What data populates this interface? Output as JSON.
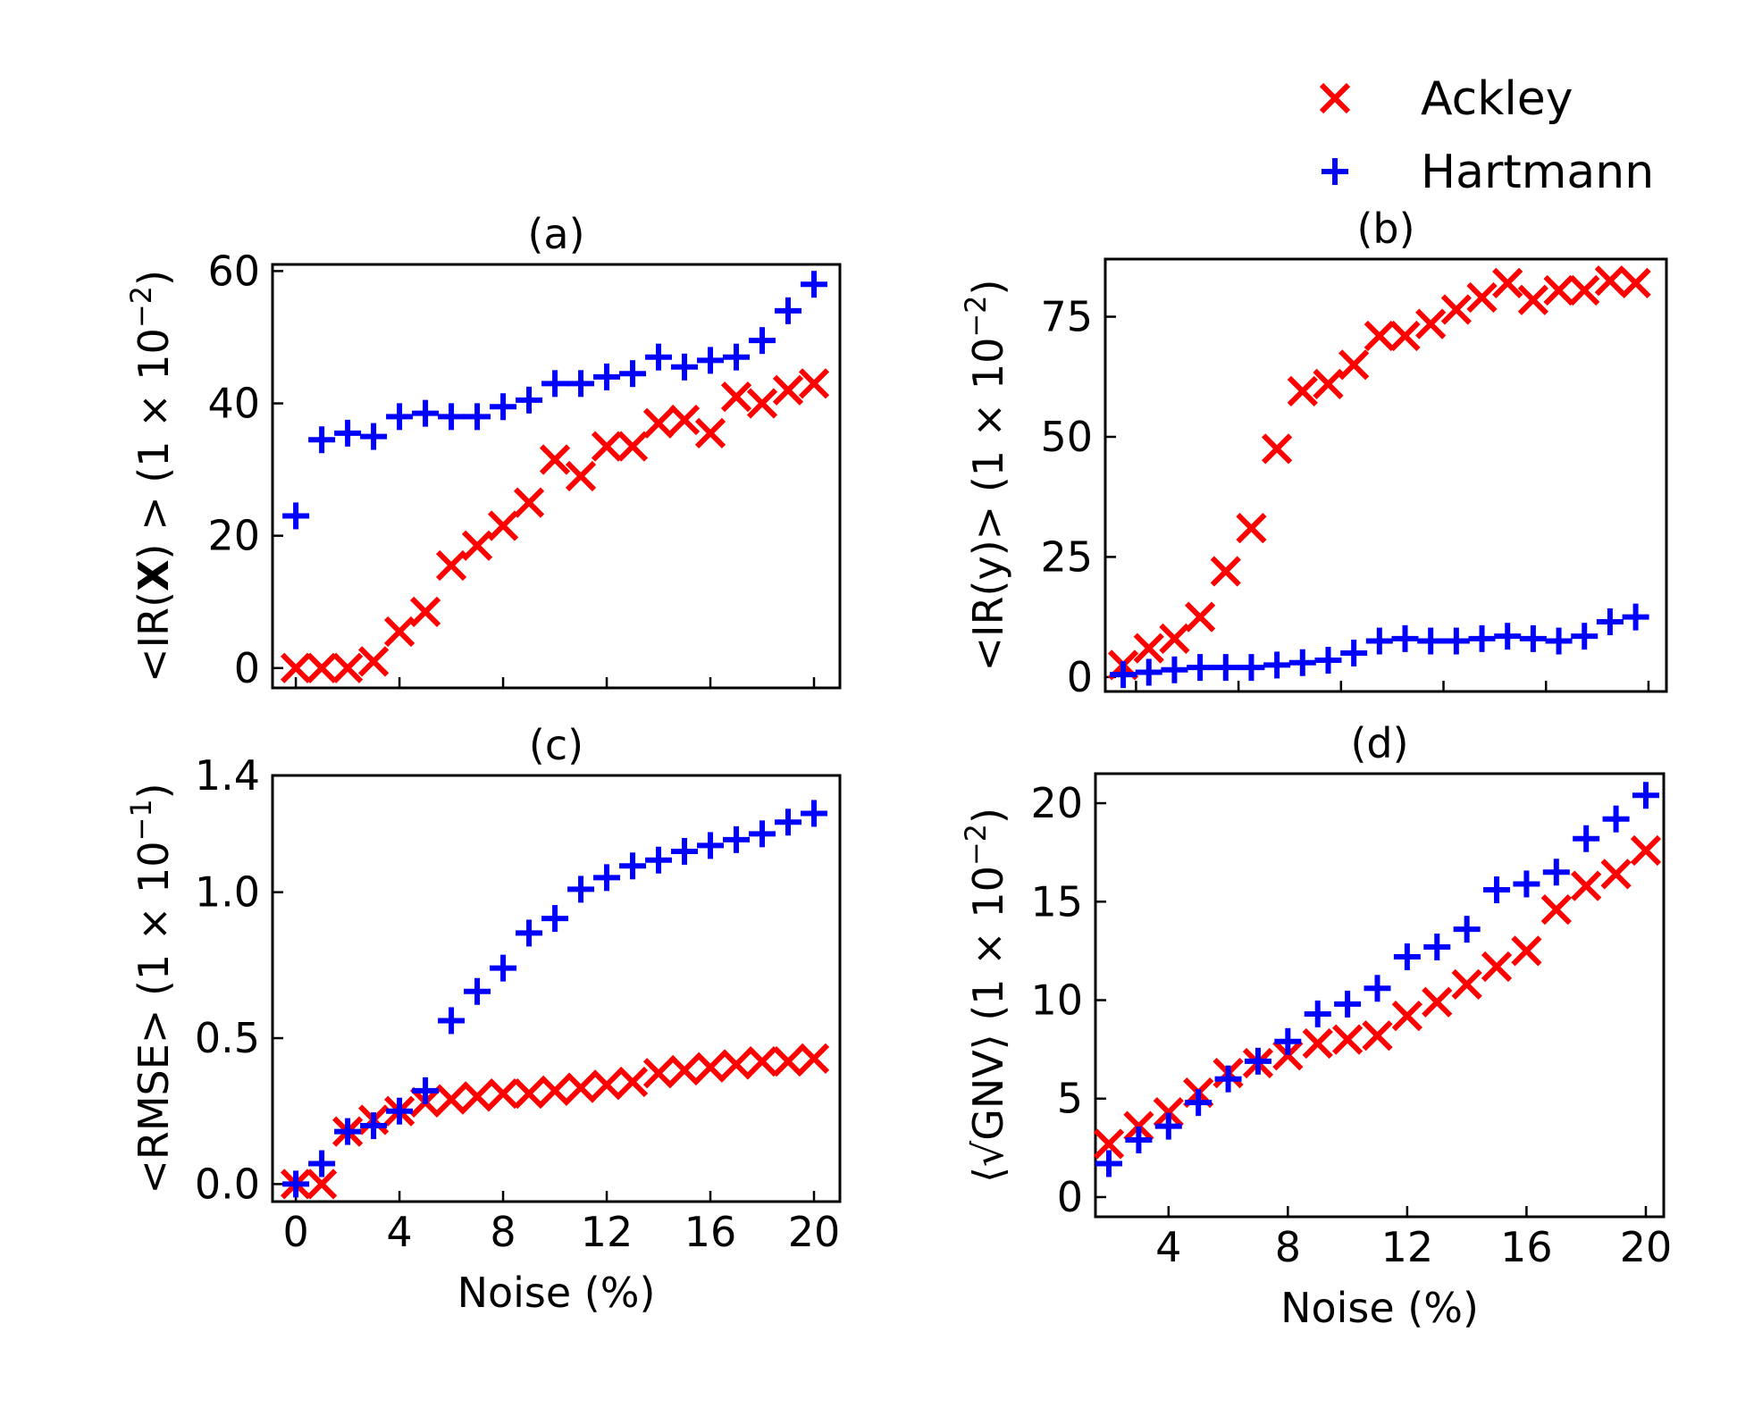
{
  "legend": {
    "entries": [
      {
        "name": "Ackley",
        "marker": "x",
        "color": "#ff0000"
      },
      {
        "name": "Hartmann",
        "marker": "+",
        "color": "#0000ff"
      }
    ],
    "placement": "top-right"
  },
  "chart_data": [
    {
      "id": "a",
      "type": "scatter",
      "title": "(a)",
      "ylabel_parts": [
        "<IR(",
        "X",
        ") > (1 × 10",
        "−2",
        ")"
      ],
      "xlabel": "",
      "xlim": [
        -0.9,
        21
      ],
      "ylim": [
        -3,
        61
      ],
      "xticks": [
        0,
        4,
        8,
        12,
        16,
        20
      ],
      "xtick_labels": [],
      "yticks": [
        0,
        20,
        40,
        60
      ],
      "ytick_labels": [
        "0",
        "20",
        "40",
        "60"
      ],
      "series": [
        {
          "name": "Ackley",
          "marker": "x",
          "color": "#ff0000",
          "x": [
            0,
            1,
            2,
            3,
            4,
            5,
            6,
            7,
            8,
            9,
            10,
            11,
            12,
            13,
            14,
            15,
            16,
            17,
            18,
            19,
            20
          ],
          "y": [
            0,
            0,
            0,
            1,
            5.5,
            8.5,
            15.5,
            18.5,
            21.5,
            25,
            31.5,
            29,
            33.5,
            33.5,
            37,
            37.5,
            35.5,
            41,
            40,
            42,
            43
          ]
        },
        {
          "name": "Hartmann",
          "marker": "+",
          "color": "#0000ff",
          "x": [
            0,
            1,
            2,
            3,
            4,
            5,
            6,
            7,
            8,
            9,
            10,
            11,
            12,
            13,
            14,
            15,
            16,
            17,
            18,
            19,
            20
          ],
          "y": [
            23,
            34.5,
            35.5,
            35,
            38,
            38.5,
            38,
            38,
            39.5,
            40.5,
            43,
            43,
            44,
            44.5,
            47,
            45.5,
            46.5,
            47,
            49.5,
            54,
            58
          ]
        }
      ]
    },
    {
      "id": "b",
      "type": "scatter",
      "title": "(b)",
      "ylabel_parts": [
        "<IR(y)> (1 × 10",
        "−2",
        ")"
      ],
      "xlabel": "",
      "xlim": [
        0.8,
        22.7
      ],
      "ylim": [
        -3,
        87
      ],
      "xticks": [
        2,
        6,
        10,
        14,
        18,
        22
      ],
      "xtick_labels": [],
      "yticks": [
        0,
        25,
        50,
        75
      ],
      "ytick_labels": [
        "0",
        "25",
        "50",
        "75"
      ],
      "series": [
        {
          "name": "Ackley",
          "marker": "x",
          "color": "#ff0000",
          "x": [
            1.5,
            2.5,
            3.5,
            4.5,
            5.5,
            6.5,
            7.5,
            8.5,
            9.5,
            10.5,
            11.5,
            12.5,
            13.5,
            14.5,
            15.5,
            16.5,
            17.5,
            18.5,
            19.5,
            20.5,
            21.5
          ],
          "y": [
            2.5,
            6,
            8,
            12.5,
            22,
            31,
            47.5,
            59.5,
            61,
            65,
            71,
            71,
            73.5,
            76.5,
            79,
            82,
            78.5,
            80.5,
            80.5,
            82.5,
            82
          ]
        },
        {
          "name": "Hartmann",
          "marker": "+",
          "color": "#0000ff",
          "x": [
            1.5,
            2.5,
            3.5,
            4.5,
            5.5,
            6.5,
            7.5,
            8.5,
            9.5,
            10.5,
            11.5,
            12.5,
            13.5,
            14.5,
            15.5,
            16.5,
            17.5,
            18.5,
            19.5,
            20.5,
            21.5
          ],
          "y": [
            0.5,
            1,
            1.5,
            2,
            2,
            2,
            2.5,
            3,
            3.5,
            5,
            7.5,
            8,
            7.5,
            7.5,
            8,
            8.5,
            8,
            7.5,
            8.5,
            11.5,
            12.5
          ]
        }
      ]
    },
    {
      "id": "c",
      "type": "scatter",
      "title": "(c)",
      "ylabel_parts": [
        "<RMSE> (1 × 10",
        "−1",
        ")"
      ],
      "xlabel": "Noise (%)",
      "xlim": [
        -0.9,
        21
      ],
      "ylim": [
        -0.06,
        1.4
      ],
      "xticks": [
        0,
        4,
        8,
        12,
        16,
        20
      ],
      "xtick_labels": [
        "0",
        "4",
        "8",
        "12",
        "16",
        "20"
      ],
      "yticks": [
        0.0,
        0.5,
        1.0,
        1.4
      ],
      "ytick_labels": [
        "0.0",
        "0.5",
        "1.0",
        "1.4"
      ],
      "series": [
        {
          "name": "Ackley",
          "marker": "x",
          "color": "#ff0000",
          "x": [
            0,
            1,
            2,
            3,
            4,
            5,
            6,
            7,
            8,
            9,
            10,
            11,
            12,
            13,
            14,
            15,
            16,
            17,
            18,
            19,
            20
          ],
          "y": [
            0,
            0,
            0.18,
            0.22,
            0.25,
            0.28,
            0.29,
            0.3,
            0.31,
            0.31,
            0.32,
            0.33,
            0.34,
            0.35,
            0.38,
            0.39,
            0.4,
            0.41,
            0.42,
            0.42,
            0.43
          ]
        },
        {
          "name": "Hartmann",
          "marker": "+",
          "color": "#0000ff",
          "x": [
            0,
            1,
            2,
            3,
            4,
            5,
            6,
            7,
            8,
            9,
            10,
            11,
            12,
            13,
            14,
            15,
            16,
            17,
            18,
            19,
            20
          ],
          "y": [
            0,
            0.07,
            0.18,
            0.2,
            0.25,
            0.32,
            0.56,
            0.66,
            0.74,
            0.86,
            0.91,
            1.01,
            1.05,
            1.09,
            1.11,
            1.14,
            1.16,
            1.18,
            1.2,
            1.24,
            1.27
          ]
        }
      ]
    },
    {
      "id": "d",
      "type": "scatter",
      "title": "(d)",
      "ylabel_parts": [
        "⟨√GNV⟩ (1 × 10",
        "−2",
        ")"
      ],
      "xlabel": "Noise (%)",
      "xlim": [
        1.55,
        20.6
      ],
      "ylim": [
        -1,
        21.5
      ],
      "xticks": [
        4,
        8,
        12,
        16,
        20
      ],
      "xtick_labels": [
        "4",
        "8",
        "12",
        "16",
        "20"
      ],
      "yticks": [
        0,
        5,
        10,
        15,
        20
      ],
      "ytick_labels": [
        "0",
        "5",
        "10",
        "15",
        "20"
      ],
      "series": [
        {
          "name": "Ackley",
          "marker": "x",
          "color": "#ff0000",
          "x": [
            2,
            3,
            4,
            5,
            6,
            7,
            8,
            9,
            10,
            11,
            12,
            13,
            14,
            15,
            16,
            17,
            18,
            19,
            20
          ],
          "y": [
            2.7,
            3.6,
            4.3,
            5.3,
            6.3,
            6.8,
            7.2,
            7.8,
            8,
            8.2,
            9.2,
            9.9,
            10.8,
            11.7,
            12.5,
            14.6,
            15.8,
            16.4,
            17.6
          ]
        },
        {
          "name": "Hartmann",
          "marker": "+",
          "color": "#0000ff",
          "x": [
            2,
            3,
            4,
            5,
            6,
            7,
            8,
            9,
            10,
            11,
            12,
            13,
            14,
            15,
            16,
            17,
            18,
            19,
            20
          ],
          "y": [
            1.7,
            2.9,
            3.6,
            4.8,
            6,
            6.9,
            7.9,
            9.3,
            9.8,
            10.6,
            12.2,
            12.7,
            13.6,
            15.6,
            15.9,
            16.5,
            18.2,
            19.2,
            20.4
          ]
        }
      ]
    }
  ]
}
